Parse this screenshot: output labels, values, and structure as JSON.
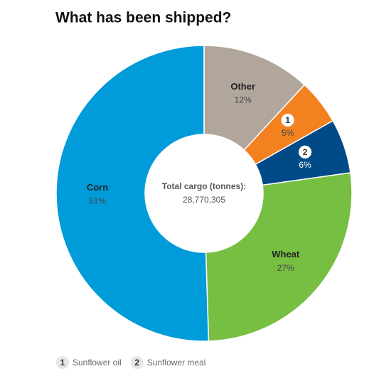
{
  "chart_data": {
    "type": "pie",
    "title": "What has been shipped?",
    "center_title": "Total cargo (tonnes):",
    "center_text": "28,770,305",
    "categories": [
      "Other",
      "Sunflower oil",
      "Sunflower meal",
      "Wheat",
      "Corn"
    ],
    "slice_labels": [
      "Other",
      "1",
      "2",
      "Wheat",
      "Corn"
    ],
    "values": [
      12,
      5,
      6,
      27,
      51
    ],
    "value_labels": [
      "12%",
      "5%",
      "6%",
      "27%",
      "51%"
    ],
    "colors": [
      "#b1a69c",
      "#f38120",
      "#004a87",
      "#76bf43",
      "#009bd9"
    ],
    "legend": [
      {
        "marker": "1",
        "name": "Sunflower oil"
      },
      {
        "marker": "2",
        "name": "Sunflower meal"
      }
    ]
  }
}
